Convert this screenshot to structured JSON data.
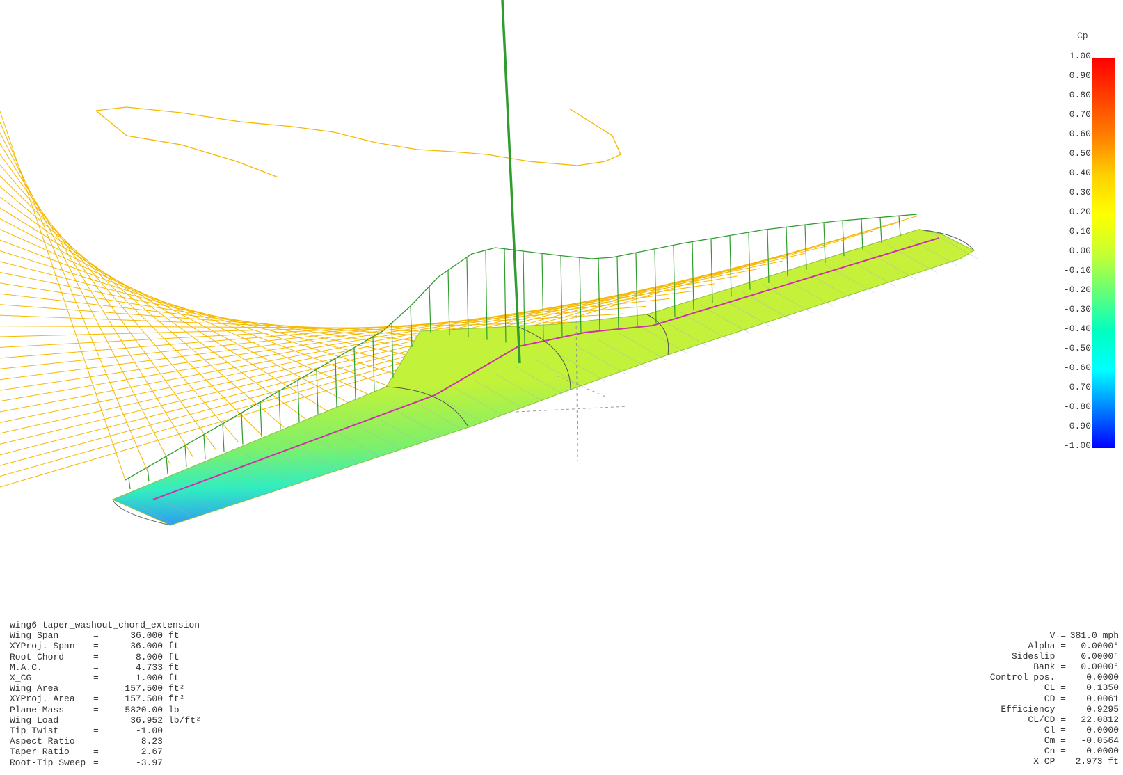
{
  "legend": {
    "title": "Cp",
    "labels": [
      "1.00",
      "0.90",
      "0.80",
      "0.70",
      "0.60",
      "0.50",
      "0.40",
      "0.30",
      "0.20",
      "0.10",
      "0.00",
      "-0.10",
      "-0.20",
      "-0.30",
      "-0.40",
      "-0.50",
      "-0.60",
      "-0.70",
      "-0.80",
      "-0.90",
      "-1.00"
    ]
  },
  "plane_name": "wing6-taper_washout_chord_extension",
  "left_info": [
    {
      "label": "Wing Span",
      "value": "36.000",
      "unit": "ft"
    },
    {
      "label": "XYProj. Span",
      "value": "36.000",
      "unit": "ft"
    },
    {
      "label": "Root Chord",
      "value": "8.000",
      "unit": "ft"
    },
    {
      "label": "M.A.C.",
      "value": "4.733",
      "unit": "ft"
    },
    {
      "label": "X_CG",
      "value": "1.000",
      "unit": "ft"
    },
    {
      "label": "Wing Area",
      "value": "157.500",
      "unit": "ft²"
    },
    {
      "label": "XYProj. Area",
      "value": "157.500",
      "unit": "ft²"
    },
    {
      "label": "Plane Mass",
      "value": "5820.00",
      "unit": "lb"
    },
    {
      "label": "Wing Load",
      "value": "36.952",
      "unit": "lb/ft²"
    },
    {
      "label": "Tip Twist",
      "value": "-1.00",
      "unit": ""
    },
    {
      "label": "Aspect Ratio",
      "value": "8.23",
      "unit": ""
    },
    {
      "label": "Taper Ratio",
      "value": "2.67",
      "unit": ""
    },
    {
      "label": "Root-Tip Sweep",
      "value": "-3.97",
      "unit": ""
    }
  ],
  "right_info": [
    {
      "label": "V =",
      "value": "381.0 mph"
    },
    {
      "label": "Alpha =",
      "value": "0.0000°"
    },
    {
      "label": "Sideslip =",
      "value": "0.0000°"
    },
    {
      "label": "Bank =",
      "value": "0.0000°"
    },
    {
      "label": "Control pos. =",
      "value": "0.0000"
    },
    {
      "label": "CL =",
      "value": "0.1350"
    },
    {
      "label": "CD =",
      "value": "0.0061"
    },
    {
      "label": "Efficiency =",
      "value": "0.9295"
    },
    {
      "label": "CL/CD =",
      "value": "22.0812"
    },
    {
      "label": "Cl =",
      "value": "0.0000"
    },
    {
      "label": "Cm =",
      "value": "-0.0564"
    },
    {
      "label": "Cn =",
      "value": "-0.0000"
    },
    {
      "label": "X_CP =",
      "value": "2.973 ft"
    }
  ],
  "colors": {
    "downwash": "#f5b800",
    "lift": "#2e9c2e",
    "center_line": "#cc33aa",
    "outline": "#999999"
  }
}
